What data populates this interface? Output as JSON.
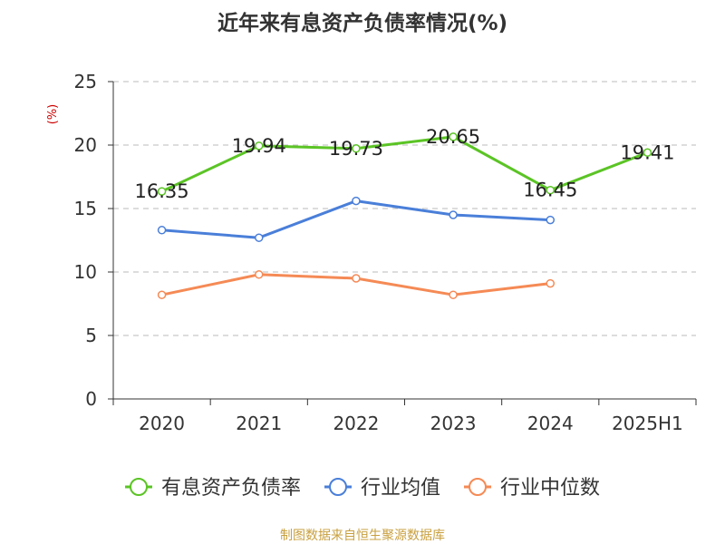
{
  "chart_data": {
    "type": "line",
    "title": "近年来有息资产负债率情况(%)",
    "ylabel": "(%)",
    "xlabel": "",
    "categories": [
      "2020",
      "2021",
      "2022",
      "2023",
      "2024",
      "2025H1"
    ],
    "ylim": [
      0,
      25
    ],
    "yticks": [
      0,
      5,
      10,
      15,
      20,
      25
    ],
    "grid": true,
    "legend_position": "bottom",
    "series": [
      {
        "name": "有息资产负债率",
        "color": "#5bc425",
        "values": [
          16.35,
          19.94,
          19.73,
          20.65,
          16.45,
          19.41
        ],
        "data_labels": [
          "16.35",
          "19.94",
          "19.73",
          "20.65",
          "16.45",
          "19.41"
        ]
      },
      {
        "name": "行业均值",
        "color": "#4a7fd9",
        "values": [
          13.3,
          12.7,
          15.6,
          14.5,
          14.1,
          null
        ]
      },
      {
        "name": "行业中位数",
        "color": "#f58a55",
        "values": [
          8.2,
          9.8,
          9.5,
          8.2,
          9.1,
          null
        ]
      }
    ]
  },
  "footer": {
    "source": "制图数据来自恒生聚源数据库"
  },
  "colors": {
    "title": "#333333",
    "axis": "#333333",
    "ylabel": "#cc0000",
    "grid": "#bbbbbb",
    "footer": "#c8a040"
  }
}
